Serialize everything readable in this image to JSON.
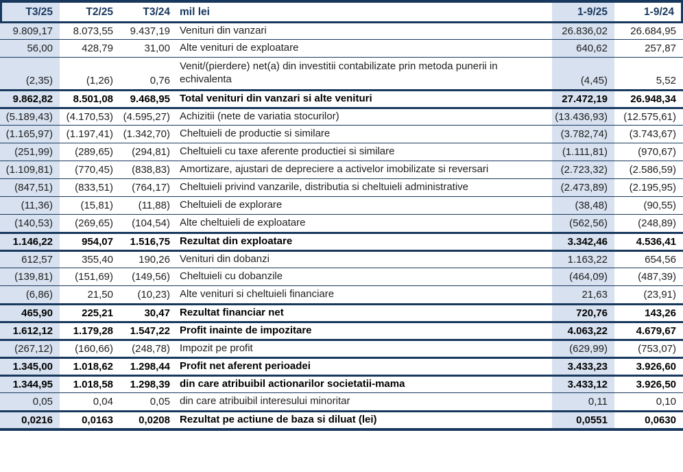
{
  "document": {
    "kind": "consolidated income statement table",
    "unit_label": "mil lei"
  },
  "colors": {
    "line_navy": "#17375D",
    "column_shade_blue": "#D7E1EF",
    "header_text_navy": "#17365D",
    "body_text": "#1E1E1E"
  },
  "table": {
    "header": {
      "t3_25": "T3/25",
      "t2_25": "T2/25",
      "t3_24": "T3/24",
      "label": "mil lei",
      "p1_9_25": "1-9/25",
      "p1_9_24": "1-9/24"
    },
    "rows": [
      {
        "cells": [
          "9.809,17",
          "8.073,55",
          "9.437,19",
          "Venituri din vanzari",
          "26.836,02",
          "26.684,95"
        ],
        "bold": false,
        "tall": false,
        "sep": "thick"
      },
      {
        "cells": [
          "56,00",
          "428,79",
          "31,00",
          "Alte venituri de exploatare",
          "640,62",
          "257,87"
        ],
        "bold": false,
        "tall": false,
        "sep": "thin"
      },
      {
        "cells": [
          "(2,35)",
          "(1,26)",
          "0,76",
          "Venit/(pierdere) net(a) din investitii contabilizate prin metoda punerii in echivalenta",
          "(4,45)",
          "5,52"
        ],
        "bold": false,
        "tall": true,
        "sep": "thin"
      },
      {
        "cells": [
          "9.862,82",
          "8.501,08",
          "9.468,95",
          "Total venituri din vanzari si alte venituri",
          "27.472,19",
          "26.948,34"
        ],
        "bold": true,
        "tall": false,
        "sep": "thick"
      },
      {
        "cells": [
          "(5.189,43)",
          "(4.170,53)",
          "(4.595,27)",
          "Achizitii (nete de variatia stocurilor)",
          "(13.436,93)",
          "(12.575,61)"
        ],
        "bold": false,
        "tall": false,
        "sep": "thick"
      },
      {
        "cells": [
          "(1.165,97)",
          "(1.197,41)",
          "(1.342,70)",
          "Cheltuieli de productie si similare",
          "(3.782,74)",
          "(3.743,67)"
        ],
        "bold": false,
        "tall": false,
        "sep": "thin"
      },
      {
        "cells": [
          "(251,99)",
          "(289,65)",
          "(294,81)",
          "Cheltuieli cu taxe aferente productiei si similare",
          "(1.111,81)",
          "(970,67)"
        ],
        "bold": false,
        "tall": false,
        "sep": "thin"
      },
      {
        "cells": [
          "(1.109,81)",
          "(770,45)",
          "(838,83)",
          "Amortizare, ajustari de depreciere a activelor imobilizate si reversari",
          "(2.723,32)",
          "(2.586,59)"
        ],
        "bold": false,
        "tall": false,
        "sep": "thin"
      },
      {
        "cells": [
          "(847,51)",
          "(833,51)",
          "(764,17)",
          "Cheltuieli privind vanzarile, distributia si cheltuieli administrative",
          "(2.473,89)",
          "(2.195,95)"
        ],
        "bold": false,
        "tall": false,
        "sep": "thin"
      },
      {
        "cells": [
          "(11,36)",
          "(15,81)",
          "(11,88)",
          "Cheltuieli de explorare",
          "(38,48)",
          "(90,55)"
        ],
        "bold": false,
        "tall": false,
        "sep": "thin"
      },
      {
        "cells": [
          "(140,53)",
          "(269,65)",
          "(104,54)",
          "Alte cheltuieli de exploatare",
          "(562,56)",
          "(248,89)"
        ],
        "bold": false,
        "tall": false,
        "sep": "thin"
      },
      {
        "cells": [
          "1.146,22",
          "954,07",
          "1.516,75",
          "Rezultat din exploatare",
          "3.342,46",
          "4.536,41"
        ],
        "bold": true,
        "tall": false,
        "sep": "thick"
      },
      {
        "cells": [
          "612,57",
          "355,40",
          "190,26",
          "Venituri din dobanzi",
          "1.163,22",
          "654,56"
        ],
        "bold": false,
        "tall": false,
        "sep": "thick"
      },
      {
        "cells": [
          "(139,81)",
          "(151,69)",
          "(149,56)",
          "Cheltuieli cu dobanzile",
          "(464,09)",
          "(487,39)"
        ],
        "bold": false,
        "tall": false,
        "sep": "thin"
      },
      {
        "cells": [
          "(6,86)",
          "21,50",
          "(10,23)",
          "Alte venituri si cheltuieli financiare",
          "21,63",
          "(23,91)"
        ],
        "bold": false,
        "tall": false,
        "sep": "thin"
      },
      {
        "cells": [
          "465,90",
          "225,21",
          "30,47",
          "Rezultat financiar net",
          "720,76",
          "143,26"
        ],
        "bold": true,
        "tall": false,
        "sep": "thick"
      },
      {
        "cells": [
          "1.612,12",
          "1.179,28",
          "1.547,22",
          "Profit inainte de impozitare",
          "4.063,22",
          "4.679,67"
        ],
        "bold": true,
        "tall": false,
        "sep": "thick"
      },
      {
        "cells": [
          "(267,12)",
          "(160,66)",
          "(248,78)",
          "Impozit pe profit",
          "(629,99)",
          "(753,07)"
        ],
        "bold": false,
        "tall": false,
        "sep": "thick"
      },
      {
        "cells": [
          "1.345,00",
          "1.018,62",
          "1.298,44",
          "Profit net aferent perioadei",
          "3.433,23",
          "3.926,60"
        ],
        "bold": true,
        "tall": false,
        "sep": "thick"
      },
      {
        "cells": [
          "1.344,95",
          "1.018,58",
          "1.298,39",
          "din care atribuibil actionarilor societatii-mama",
          "3.433,12",
          "3.926,50"
        ],
        "bold": true,
        "tall": false,
        "sep": "thick"
      },
      {
        "cells": [
          "0,05",
          "0,04",
          "0,05",
          "din care atribuibil interesului minoritar",
          "0,11",
          "0,10"
        ],
        "bold": false,
        "tall": false,
        "sep": "thin"
      },
      {
        "cells": [
          "0,0216",
          "0,0163",
          "0,0208",
          "Rezultat pe actiune de baza si diluat (lei)",
          "0,0551",
          "0,0630"
        ],
        "bold": true,
        "tall": false,
        "sep": "thick"
      }
    ]
  }
}
